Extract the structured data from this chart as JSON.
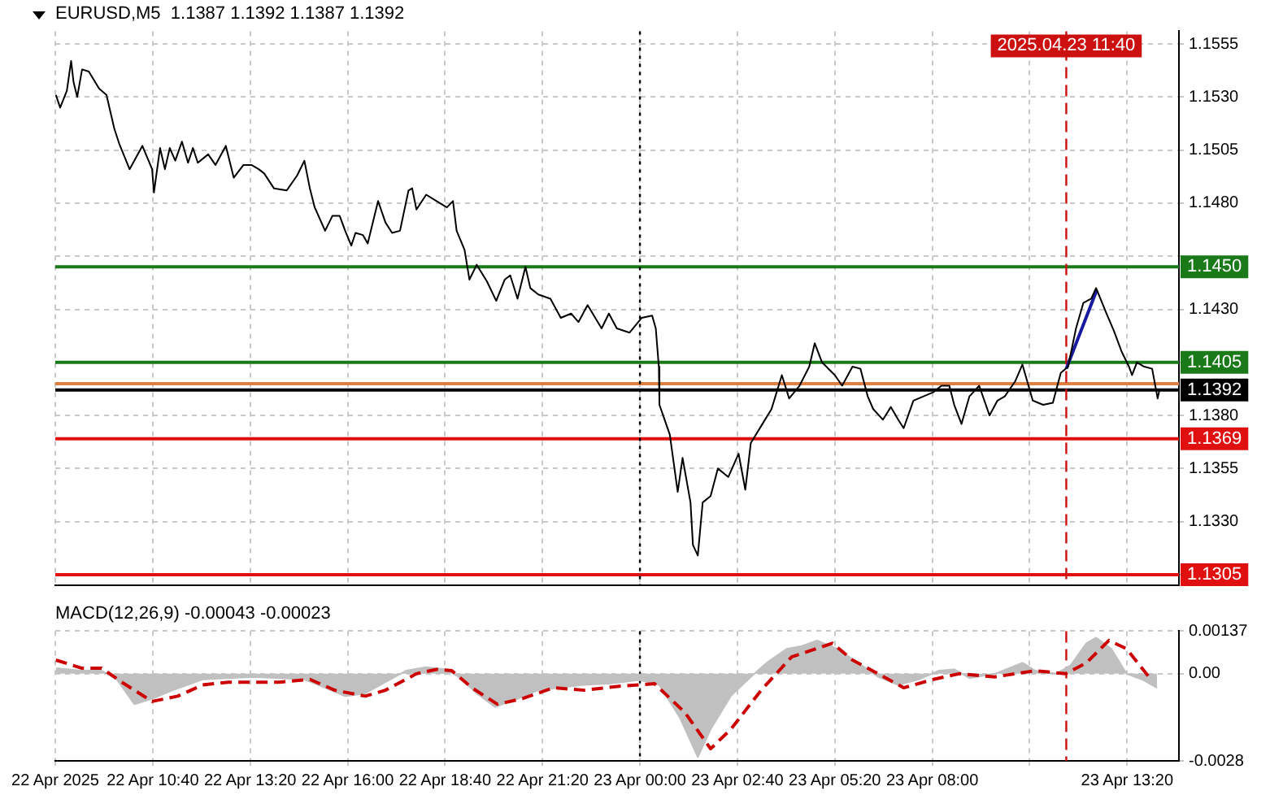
{
  "chart_data": [
    {
      "type": "line",
      "title": "EURUSD,M5  1.1387 1.1392 1.1387 1.1392",
      "x": [
        "2025-04-22T08:01",
        "2025-04-22T08:08",
        "2025-04-22T08:19",
        "2025-04-22T08:26",
        "2025-04-22T08:30",
        "2025-04-22T08:36",
        "2025-04-22T08:44",
        "2025-04-22T08:55",
        "2025-04-22T09:12",
        "2025-04-22T09:24",
        "2025-04-22T09:37",
        "2025-04-22T09:45",
        "2025-04-22T10:02",
        "2025-04-22T10:23",
        "2025-04-22T10:39",
        "2025-04-22T10:42",
        "2025-04-22T10:52",
        "2025-04-22T11:00",
        "2025-04-22T11:08",
        "2025-04-22T11:17",
        "2025-04-22T11:28",
        "2025-04-22T11:38",
        "2025-04-22T11:46",
        "2025-04-22T11:54",
        "2025-04-22T12:11",
        "2025-04-22T12:23",
        "2025-04-22T12:40",
        "2025-04-22T12:53",
        "2025-04-22T13:09",
        "2025-04-22T13:22",
        "2025-04-22T13:34",
        "2025-04-22T13:43",
        "2025-04-22T13:59",
        "2025-04-22T14:20",
        "2025-04-22T14:37",
        "2025-04-22T14:49",
        "2025-04-22T14:58",
        "2025-04-22T15:06",
        "2025-04-22T15:23",
        "2025-04-22T15:35",
        "2025-04-22T15:47",
        "2025-04-22T15:56",
        "2025-04-22T16:06",
        "2025-04-22T16:13",
        "2025-04-22T16:25",
        "2025-04-22T16:33",
        "2025-04-22T16:50",
        "2025-04-22T17:02",
        "2025-04-22T17:13",
        "2025-04-22T17:26",
        "2025-04-22T17:40",
        "2025-04-22T17:46",
        "2025-04-22T17:53",
        "2025-04-22T18:09",
        "2025-04-22T18:26",
        "2025-04-22T18:43",
        "2025-04-22T18:53",
        "2025-04-22T18:59",
        "2025-04-22T19:12",
        "2025-04-22T19:20",
        "2025-04-22T19:32",
        "2025-04-22T19:49",
        "2025-04-22T20:04",
        "2025-04-22T20:18",
        "2025-04-22T20:27",
        "2025-04-22T20:39",
        "2025-04-22T20:52",
        "2025-04-22T21:00",
        "2025-04-22T21:13",
        "2025-04-22T21:33",
        "2025-04-22T21:50",
        "2025-04-22T22:07",
        "2025-04-22T22:19",
        "2025-04-22T22:34",
        "2025-04-22T22:57",
        "2025-04-22T23:09",
        "2025-04-22T23:22",
        "2025-04-22T23:43",
        "2025-04-23T00:03",
        "2025-04-23T00:20",
        "2025-04-23T00:26",
        "2025-04-23T00:31",
        "2025-04-23T00:32",
        "2025-04-23T00:49",
        "2025-04-23T01:02",
        "2025-04-23T01:10",
        "2025-04-23T01:23",
        "2025-04-23T01:27",
        "2025-04-23T01:35",
        "2025-04-23T01:43",
        "2025-04-23T01:56",
        "2025-04-23T02:08",
        "2025-04-23T02:25",
        "2025-04-23T02:42",
        "2025-04-23T02:53",
        "2025-04-23T03:02",
        "2025-04-23T03:19",
        "2025-04-23T03:36",
        "2025-04-23T03:53",
        "2025-04-23T04:05",
        "2025-04-23T04:22",
        "2025-04-23T04:38",
        "2025-04-23T04:47",
        "2025-04-23T04:59",
        "2025-04-23T05:20",
        "2025-04-23T05:32",
        "2025-04-23T05:49",
        "2025-04-23T06:02",
        "2025-04-23T06:14",
        "2025-04-23T06:23",
        "2025-04-23T06:39",
        "2025-04-23T06:52",
        "2025-04-23T07:04",
        "2025-04-23T07:13",
        "2025-04-23T07:29",
        "2025-04-23T08:02",
        "2025-04-23T08:15",
        "2025-04-23T08:28",
        "2025-04-23T08:36",
        "2025-04-23T08:48",
        "2025-04-23T09:01",
        "2025-04-23T09:17",
        "2025-04-23T09:34",
        "2025-04-23T09:47",
        "2025-04-23T09:59",
        "2025-04-23T10:16",
        "2025-04-23T10:28",
        "2025-04-23T10:45",
        "2025-04-23T11:02",
        "2025-04-23T11:18",
        "2025-04-23T11:31",
        "2025-04-23T11:43",
        "2025-04-23T11:56",
        "2025-04-23T12:08",
        "2025-04-23T12:21",
        "2025-04-23T12:29",
        "2025-04-23T12:46",
        "2025-04-23T12:58",
        "2025-04-23T13:11",
        "2025-04-23T13:23",
        "2025-04-23T13:28",
        "2025-04-23T13:36",
        "2025-04-23T13:48",
        "2025-04-23T14:01",
        "2025-04-23T14:10",
        "2025-04-23T14:13"
      ],
      "series": [
        {
          "color": "#000000",
          "values": [
            1.1531,
            1.1525,
            1.1533,
            1.1547,
            1.1537,
            1.153,
            1.1543,
            1.1542,
            1.1534,
            1.1531,
            1.1515,
            1.1508,
            1.1496,
            1.1507,
            1.1496,
            1.1485,
            1.1506,
            1.1496,
            1.1506,
            1.15,
            1.1509,
            1.1499,
            1.1506,
            1.1499,
            1.1503,
            1.1498,
            1.1507,
            1.1492,
            1.1498,
            1.1498,
            1.1496,
            1.1494,
            1.1487,
            1.1486,
            1.1493,
            1.15,
            1.1487,
            1.1478,
            1.1467,
            1.1474,
            1.1474,
            1.1467,
            1.146,
            1.1466,
            1.1465,
            1.1461,
            1.1481,
            1.1471,
            1.1466,
            1.1467,
            1.1486,
            1.1487,
            1.1477,
            1.1484,
            1.1481,
            1.1478,
            1.1481,
            1.1467,
            1.1458,
            1.1444,
            1.1451,
            1.1443,
            1.1434,
            1.1444,
            1.1446,
            1.1435,
            1.145,
            1.144,
            1.1437,
            1.1435,
            1.1426,
            1.1428,
            1.1424,
            1.1432,
            1.1421,
            1.1428,
            1.1421,
            1.1419,
            1.1426,
            1.1427,
            1.1421,
            1.1403,
            1.1385,
            1.1371,
            1.1344,
            1.136,
            1.1339,
            1.1319,
            1.1314,
            1.1339,
            1.1342,
            1.1355,
            1.1351,
            1.1362,
            1.1345,
            1.1367,
            1.1375,
            1.1383,
            1.1399,
            1.1388,
            1.1394,
            1.1403,
            1.1414,
            1.1405,
            1.1399,
            1.1394,
            1.1403,
            1.1402,
            1.1389,
            1.1383,
            1.1378,
            1.1384,
            1.1378,
            1.1374,
            1.1387,
            1.1391,
            1.1394,
            1.1394,
            1.1385,
            1.1376,
            1.1389,
            1.1394,
            1.138,
            1.1387,
            1.1389,
            1.1396,
            1.1404,
            1.1387,
            1.1385,
            1.1386,
            1.14,
            1.1403,
            1.1421,
            1.1433,
            1.1435,
            1.144,
            1.1428,
            1.142,
            1.141,
            1.1403,
            1.1399,
            1.1405,
            1.1403,
            1.1402,
            1.1388,
            1.1392
          ]
        },
        {
          "type": "line",
          "color": "#1a1aa0",
          "x": [
            "2025-04-23T11:40",
            "2025-04-23T12:30"
          ],
          "values": [
            1.1402,
            1.1439
          ]
        }
      ],
      "xlim": [
        "2025-04-22T08:00",
        "2025-04-23T14:45"
      ],
      "ylim": [
        1.13,
        1.1561
      ],
      "xticks": [
        {
          "value": "2025-04-22T08:00",
          "label": null
        },
        {
          "value": "2025-04-22T10:40",
          "label": null
        },
        {
          "value": "2025-04-22T13:20",
          "label": null
        },
        {
          "value": "2025-04-22T16:00",
          "label": null
        },
        {
          "value": "2025-04-22T18:40",
          "label": null
        },
        {
          "value": "2025-04-22T21:20",
          "label": null
        },
        {
          "value": "2025-04-23T00:00",
          "label": null
        },
        {
          "value": "2025-04-23T02:40",
          "label": null
        },
        {
          "value": "2025-04-23T05:20",
          "label": null
        },
        {
          "value": "2025-04-23T08:00",
          "label": null
        },
        {
          "value": "2025-04-23T10:40",
          "label": null
        },
        {
          "value": "2025-04-23T13:20",
          "label": null
        }
      ],
      "yticks": [
        1.1555,
        {
          "value": 1.153,
          "label": "1.1530"
        },
        1.1505,
        {
          "value": 1.148,
          "label": "1.1480"
        },
        {
          "value": 1.1455,
          "label": null
        },
        {
          "value": 1.143,
          "label": "1.1430"
        },
        {
          "value": 1.1405,
          "label": null
        },
        {
          "value": 1.138,
          "label": "1.1380"
        },
        1.1355,
        {
          "value": 1.133,
          "label": "1.1330"
        },
        {
          "value": 1.1305,
          "label": null
        }
      ],
      "grid": true,
      "tick_labels": "y",
      "ref_lines": [
        {
          "axis": "y",
          "value": 1.145,
          "label": "1.1450",
          "color": "#1a7a1a"
        },
        {
          "axis": "y",
          "value": 1.1405,
          "label": "1.1405",
          "color": "#1a7a1a"
        },
        {
          "axis": "y",
          "value": 1.1395,
          "color": "#e08040"
        },
        {
          "axis": "y",
          "value": 1.1392,
          "label": "1.1392",
          "color": "#000000"
        },
        {
          "axis": "y",
          "value": 1.1369,
          "label": "1.1369",
          "color": "#e01010"
        },
        {
          "axis": "y",
          "value": 1.1305,
          "label": "1.1305",
          "color": "#e01010"
        },
        {
          "axis": "x",
          "value": "2025-04-23T00:00",
          "color": "#000000",
          "line_style": "dotted"
        },
        {
          "axis": "x",
          "value": "2025-04-23T11:40",
          "label": "2025.04.23 11:40",
          "color": "#cc1010",
          "line_style": "dashed"
        }
      ]
    },
    {
      "type": "area",
      "title": "MACD(12,26,9) -0.00043 -0.00023",
      "series": [
        {
          "color": "#c0c0c0",
          "x": [
            "2025-04-22T08:01",
            "2025-04-22T08:43",
            "2025-04-22T09:16",
            "2025-04-22T09:41",
            "2025-04-22T10:10",
            "2025-04-22T10:39",
            "2025-04-22T11:13",
            "2025-04-22T12:02",
            "2025-04-22T13:25",
            "2025-04-22T14:49",
            "2025-04-22T15:23",
            "2025-04-22T15:56",
            "2025-04-22T16:29",
            "2025-04-22T17:02",
            "2025-04-22T17:36",
            "2025-04-22T18:09",
            "2025-04-22T18:43",
            "2025-04-22T19:08",
            "2025-04-22T19:32",
            "2025-04-22T20:02",
            "2025-04-22T20:39",
            "2025-04-22T21:13",
            "2025-04-22T21:46",
            "2025-04-22T22:28",
            "2025-04-22T23:09",
            "2025-04-22T23:59",
            "2025-04-23T00:32",
            "2025-04-23T01:06",
            "2025-04-23T01:35",
            "2025-04-23T01:56",
            "2025-04-23T02:29",
            "2025-04-23T03:02",
            "2025-04-23T03:28",
            "2025-04-23T04:01",
            "2025-04-23T04:26",
            "2025-04-23T04:51",
            "2025-04-23T05:24",
            "2025-04-23T05:58",
            "2025-04-23T06:31",
            "2025-04-23T07:04",
            "2025-04-23T07:38",
            "2025-04-23T08:11",
            "2025-04-23T08:36",
            "2025-04-23T09:01",
            "2025-04-23T09:43",
            "2025-04-23T10:28",
            "2025-04-23T10:49",
            "2025-04-23T11:23",
            "2025-04-23T11:47",
            "2025-04-23T12:13",
            "2025-04-23T12:29",
            "2025-04-23T12:54",
            "2025-04-23T13:19",
            "2025-04-23T13:44",
            "2025-04-23T14:09"
          ],
          "values": [
            0.00018,
            0.0001,
            0.0001,
            -0.00018,
            -0.00098,
            -0.0008,
            -0.00053,
            -0.00018,
            -0.0001,
            -0.00018,
            -0.00045,
            -0.00072,
            -0.00063,
            -0.00027,
            0.0001,
            0.00021,
            0.00014,
            -0.00018,
            -0.00063,
            -0.00107,
            -0.0008,
            -0.00053,
            -0.00045,
            -0.00036,
            -0.00032,
            -0.0002,
            -0.00036,
            -0.00143,
            -0.00268,
            -0.00179,
            -0.00072,
            -0.0001,
            0.00035,
            0.0008,
            0.00089,
            0.00107,
            0.0008,
            0.00035,
            -0.0001,
            -0.00036,
            -0.00018,
            0.0001,
            0.00014,
            -0.00014,
            0,
            0.00035,
            0.0001,
            0,
            0.00027,
            0.00098,
            0.00116,
            0.0008,
            0,
            -0.00018,
            -0.00045
          ]
        },
        {
          "type": "line",
          "line_style": "dashed",
          "color": "#cc0000",
          "x": [
            "2025-04-22T08:01",
            "2025-04-22T08:43",
            "2025-04-22T09:16",
            "2025-04-22T09:49",
            "2025-04-22T10:39",
            "2025-04-22T11:21",
            "2025-04-22T12:02",
            "2025-04-22T12:44",
            "2025-04-22T14:08",
            "2025-04-22T14:58",
            "2025-04-22T15:39",
            "2025-04-22T16:29",
            "2025-04-22T17:02",
            "2025-04-22T17:53",
            "2025-04-22T18:26",
            "2025-04-22T18:51",
            "2025-04-22T19:24",
            "2025-04-22T20:06",
            "2025-04-22T20:47",
            "2025-04-22T21:38",
            "2025-04-22T22:28",
            "2025-04-22T23:26",
            "2025-04-23T00:24",
            "2025-04-23T01:14",
            "2025-04-23T01:56",
            "2025-04-23T02:29",
            "2025-04-23T03:19",
            "2025-04-23T04:09",
            "2025-04-23T05:16",
            "2025-04-23T05:49",
            "2025-04-23T06:31",
            "2025-04-23T07:13",
            "2025-04-23T08:02",
            "2025-04-23T08:44",
            "2025-04-23T09:43",
            "2025-04-23T10:49",
            "2025-04-23T11:39",
            "2025-04-23T12:13",
            "2025-04-23T12:50",
            "2025-04-23T13:19",
            "2025-04-23T14:01"
          ],
          "values": [
            0.00044,
            0.00018,
            0.00018,
            -0.00027,
            -0.00089,
            -0.00072,
            -0.00036,
            -0.00027,
            -0.00027,
            -0.00018,
            -0.00053,
            -0.00072,
            -0.00053,
            0,
            0.00014,
            0.0001,
            -0.00045,
            -0.00098,
            -0.0008,
            -0.00045,
            -0.00053,
            -0.0004,
            -0.00032,
            -0.00125,
            -0.00241,
            -0.00179,
            -0.00053,
            0.00054,
            0.00098,
            0.00044,
            0,
            -0.00045,
            -0.00018,
            0,
            -0.0001,
            0.0001,
            0,
            0.00035,
            0.00107,
            0.0008,
            -0.00023
          ]
        }
      ],
      "xlim": [
        "2025-04-22T08:00",
        "2025-04-23T14:45"
      ],
      "ylim": [
        -0.0028,
        0.00137
      ],
      "xticks": [
        {
          "value": "2025-04-22T08:00",
          "label": "22 Apr 2025"
        },
        {
          "value": "2025-04-22T10:40",
          "label": "22 Apr 10:40"
        },
        {
          "value": "2025-04-22T13:20",
          "label": "22 Apr 13:20"
        },
        {
          "value": "2025-04-22T16:00",
          "label": "22 Apr 16:00"
        },
        {
          "value": "2025-04-22T18:40",
          "label": "22 Apr 18:40"
        },
        {
          "value": "2025-04-22T21:20",
          "label": "22 Apr 21:20"
        },
        {
          "value": "2025-04-23T00:00",
          "label": "23 Apr 00:00"
        },
        {
          "value": "2025-04-23T02:40",
          "label": "23 Apr 02:40"
        },
        {
          "value": "2025-04-23T05:20",
          "label": "23 Apr 05:20"
        },
        {
          "value": "2025-04-23T08:00",
          "label": "23 Apr 08:00"
        },
        {
          "value": "2025-04-23T10:40",
          "label": null
        },
        {
          "value": "2025-04-23T13:20",
          "label": "23 Apr 13:20"
        }
      ],
      "yticks": [
        -0.0028,
        {
          "value": 0,
          "label": "0.00"
        },
        0.00137
      ],
      "grid": true,
      "ref_lines": [
        {
          "axis": "x",
          "value": "2025-04-23T00:00",
          "color": "#000000",
          "line_style": "dotted"
        },
        {
          "axis": "x",
          "value": "2025-04-23T11:40",
          "color": "#cc1010",
          "line_style": "dashed"
        }
      ]
    }
  ]
}
